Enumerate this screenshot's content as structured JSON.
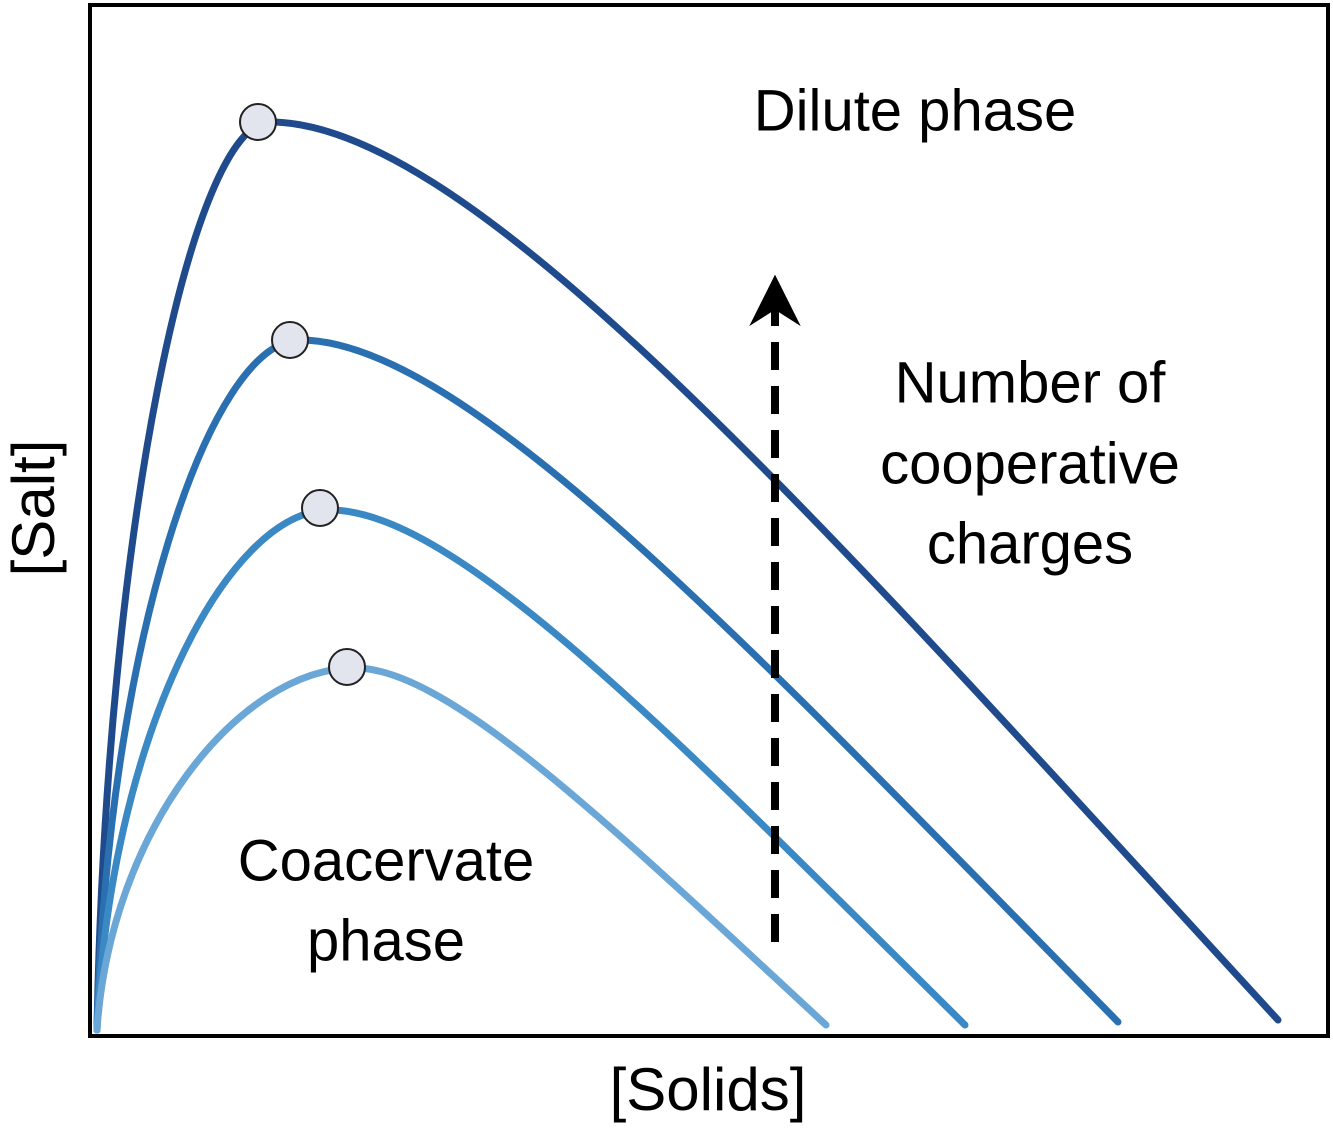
{
  "labels": {
    "dilute": "Dilute phase",
    "cooperative": [
      "Number of",
      "cooperative",
      "charges"
    ],
    "coacervate": [
      "Coacervate",
      "phase"
    ],
    "y_axis": "[Salt]",
    "x_axis": "[Solids]"
  }
}
